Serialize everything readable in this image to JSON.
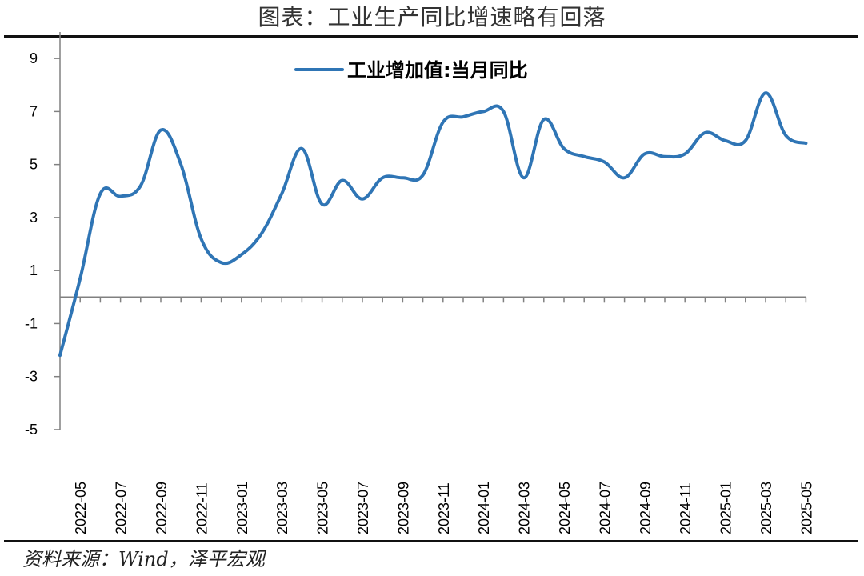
{
  "title": "图表：工业生产同比增速略有回落",
  "source": "资料来源：Wind，泽平宏观",
  "chart_data": {
    "type": "line",
    "title": "图表：工业生产同比增速略有回落",
    "xlabel": "",
    "ylabel": "",
    "ylim": [
      -5,
      10
    ],
    "yticks": [
      -5,
      -3,
      -1,
      1,
      3,
      5,
      7,
      9
    ],
    "grid": false,
    "legend_position": "top-center",
    "x": [
      "2022-04",
      "2022-05",
      "2022-06",
      "2022-07",
      "2022-08",
      "2022-09",
      "2022-10",
      "2022-11",
      "2022-12",
      "2023-01",
      "2023-02",
      "2023-03",
      "2023-04",
      "2023-05",
      "2023-06",
      "2023-07",
      "2023-08",
      "2023-09",
      "2023-10",
      "2023-11",
      "2023-12",
      "2024-01",
      "2024-02",
      "2024-03",
      "2024-04",
      "2024-05",
      "2024-06",
      "2024-07",
      "2024-08",
      "2024-09",
      "2024-10",
      "2024-11",
      "2024-12",
      "2025-01",
      "2025-02",
      "2025-03",
      "2025-04",
      "2025-05"
    ],
    "x_tick_labels": [
      "2022-05",
      "2022-07",
      "2022-09",
      "2022-11",
      "2023-01",
      "2023-03",
      "2023-05",
      "2023-07",
      "2023-09",
      "2023-11",
      "2024-01",
      "2024-03",
      "2024-05",
      "2024-07",
      "2024-09",
      "2024-11",
      "2025-01",
      "2025-03",
      "2025-05"
    ],
    "series": [
      {
        "name": "工业增加值:当月同比",
        "color": "#2f75b5",
        "values": [
          -2.2,
          0.7,
          3.9,
          3.8,
          4.2,
          6.3,
          5.0,
          2.2,
          1.3,
          1.6,
          2.4,
          3.9,
          5.6,
          3.5,
          4.4,
          3.7,
          4.5,
          4.5,
          4.6,
          6.6,
          6.8,
          7.0,
          7.0,
          4.5,
          6.7,
          5.6,
          5.3,
          5.1,
          4.5,
          5.4,
          5.3,
          5.4,
          6.2,
          5.9,
          5.9,
          7.7,
          6.1,
          5.8
        ]
      }
    ]
  }
}
